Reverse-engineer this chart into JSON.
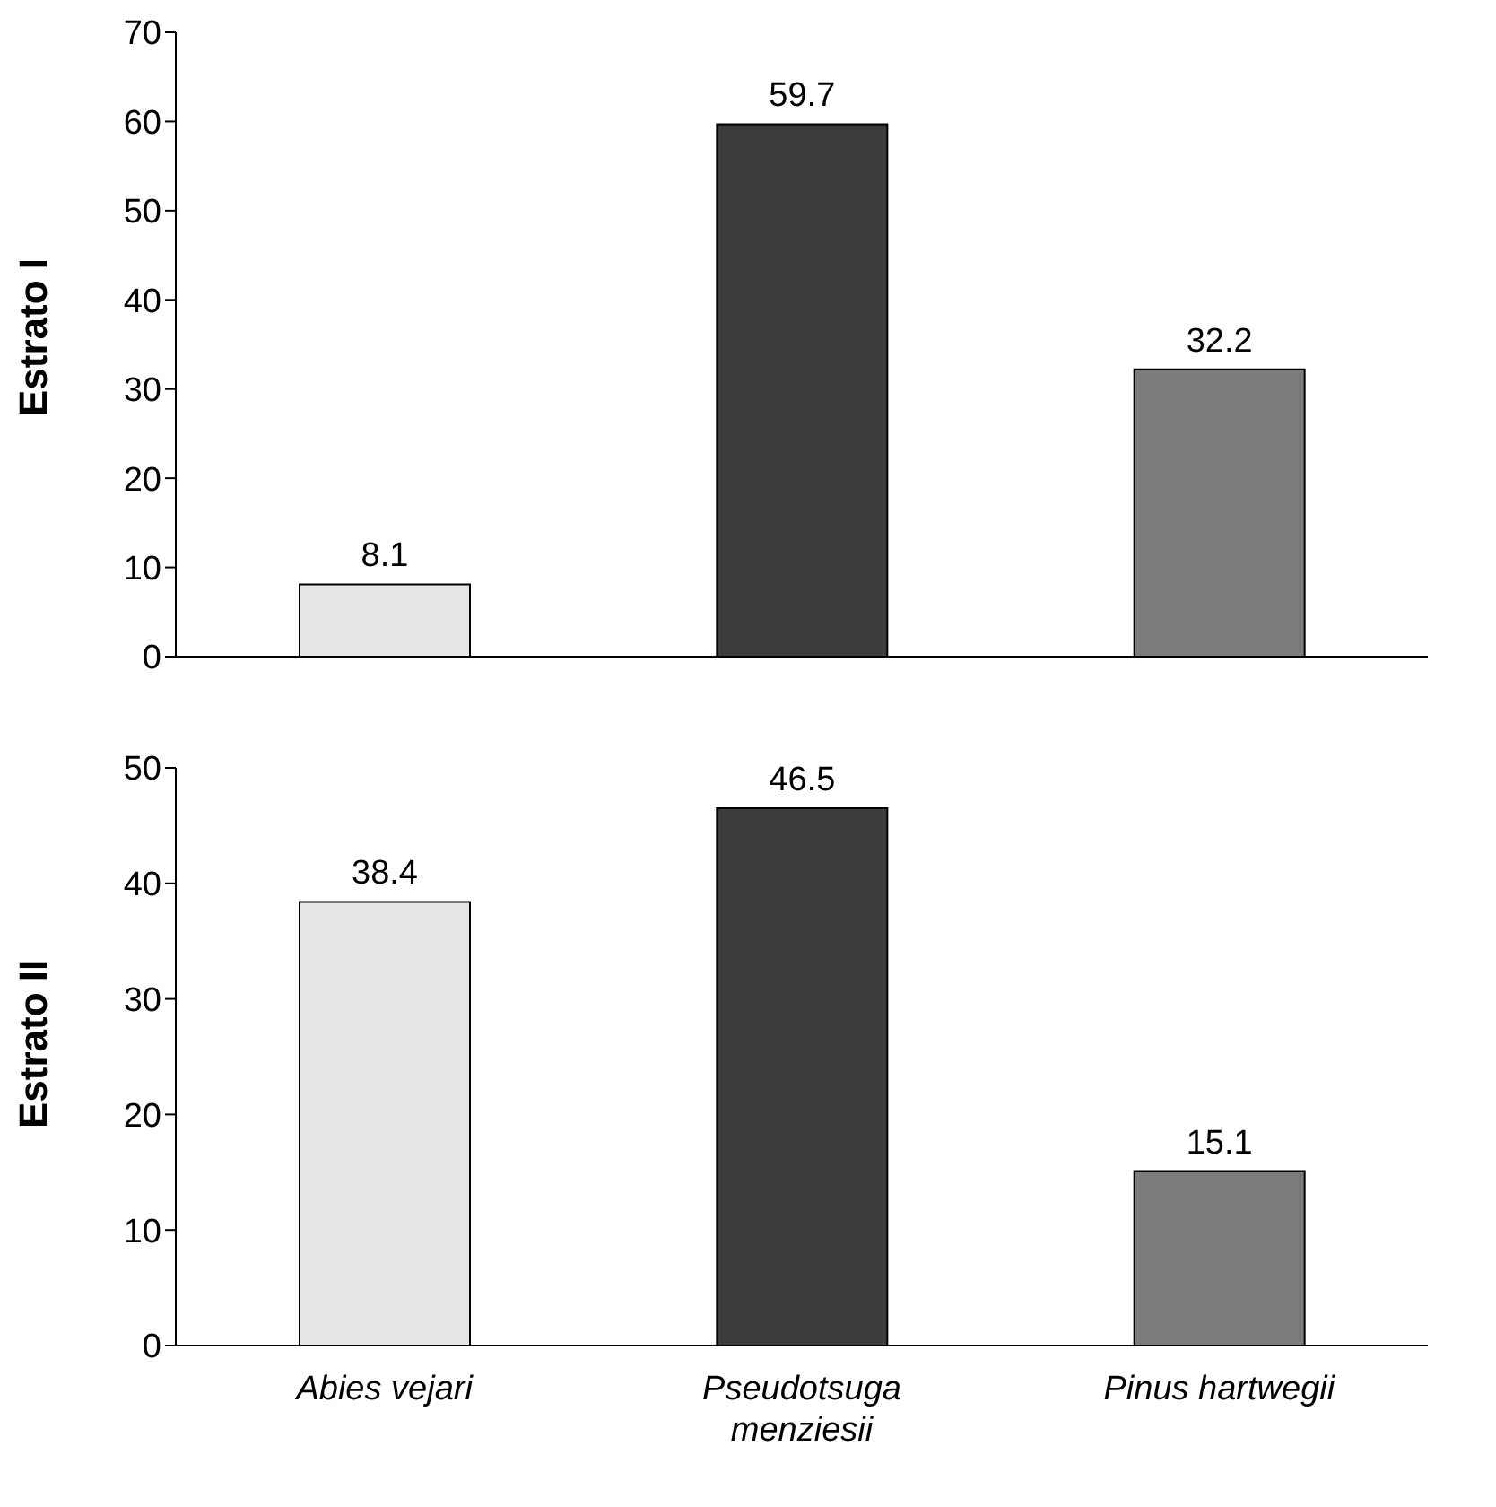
{
  "chart_data": [
    {
      "type": "bar",
      "ylabel": "Estrato I",
      "categories": [
        null,
        null,
        null
      ],
      "values": [
        8.1,
        59.7,
        32.2
      ],
      "colors": [
        "#e6e6e6",
        "#3c3c3c",
        "#7c7c7c"
      ],
      "ylim": [
        0,
        70
      ],
      "yticks": [
        0,
        10,
        20,
        30,
        40,
        50,
        60,
        70
      ],
      "data_labels": true
    },
    {
      "type": "bar",
      "ylabel": "Estrato II",
      "categories": [
        "Abies vejari",
        "Pseudotsuga menziesii",
        "Pinus hartwegii"
      ],
      "values": [
        38.4,
        46.5,
        15.1
      ],
      "colors": [
        "#e6e6e6",
        "#3c3c3c",
        "#7c7c7c"
      ],
      "ylim": [
        0,
        50
      ],
      "yticks": [
        0,
        10,
        20,
        30,
        40,
        50
      ],
      "data_labels": true
    }
  ]
}
